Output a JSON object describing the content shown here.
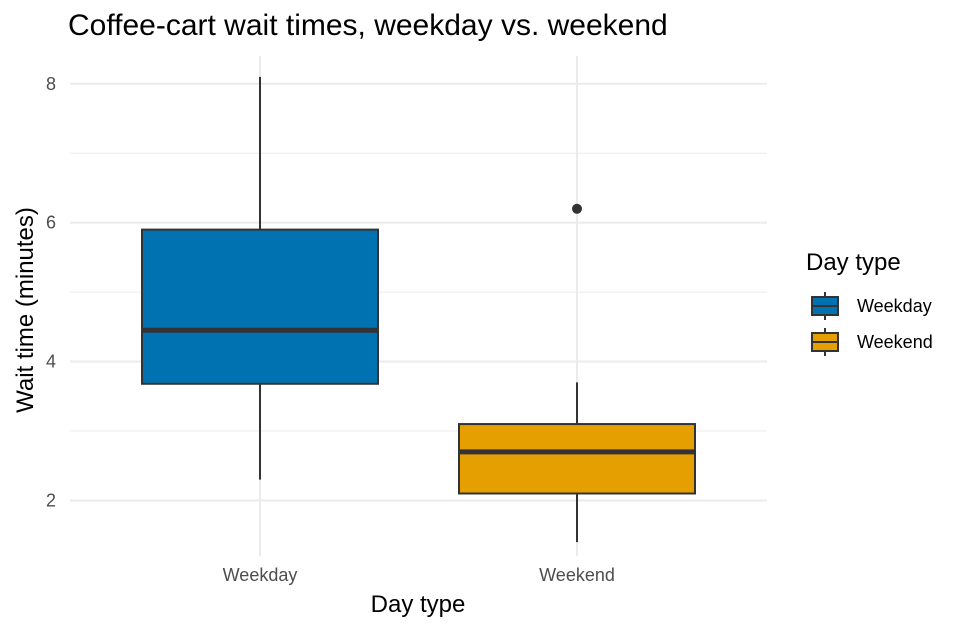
{
  "chart_data": {
    "type": "boxplot",
    "title": "Coffee-cart wait times, weekday vs. weekend",
    "xlabel": "Day type",
    "ylabel": "Wait time (minutes)",
    "ylim": [
      1.2,
      8.4
    ],
    "y_ticks": [
      2,
      4,
      6,
      8
    ],
    "grid": true,
    "legend": {
      "title": "Day type",
      "position": "right"
    },
    "categories": [
      "Weekday",
      "Weekend"
    ],
    "series": [
      {
        "name": "Weekday",
        "color": "#0072B2",
        "min": 2.3,
        "q1": 3.68,
        "median": 4.45,
        "q3": 5.9,
        "max": 8.1,
        "outliers": []
      },
      {
        "name": "Weekend",
        "color": "#E69F00",
        "min": 1.4,
        "q1": 2.1,
        "median": 2.7,
        "q3": 3.1,
        "max": 3.7,
        "outliers": [
          6.2
        ]
      }
    ]
  }
}
